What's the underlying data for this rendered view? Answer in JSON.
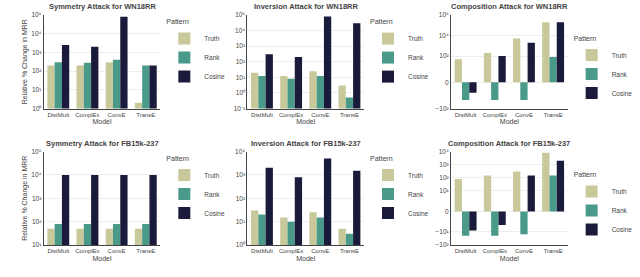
{
  "chart_data": [
    {
      "type": "bar",
      "title": "Symmetry Attack for WN18RR",
      "xlabel": "Model",
      "ylabel": "Relative % Change in MRR",
      "categories": [
        "DistMult",
        "ComplEx",
        "ConvE",
        "TransE"
      ],
      "series": [
        {
          "name": "Truth",
          "color": "#c8c89a",
          "values": [
            200,
            200,
            300,
            2
          ]
        },
        {
          "name": "Rank",
          "color": "#4a9a8a",
          "values": [
            300,
            280,
            400,
            200
          ]
        },
        {
          "name": "Cosine",
          "color": "#1a1a3a",
          "values": [
            2500,
            2000,
            80000,
            200
          ]
        }
      ],
      "ylim": [
        1,
        100000
      ],
      "yticks": [
        {
          "value": 1,
          "label": "10⁰"
        },
        {
          "value": 10,
          "label": "10¹"
        },
        {
          "value": 100,
          "label": "10²"
        },
        {
          "value": 1000,
          "label": "10³"
        },
        {
          "value": 10000,
          "label": "10⁴"
        },
        {
          "value": 100000,
          "label": "10⁵"
        }
      ],
      "log": "y",
      "grid": true,
      "legend": "upper right",
      "legend_title": "Pattern"
    },
    {
      "type": "bar",
      "title": "Inversion Attack for WN18RR",
      "xlabel": "Model",
      "categories": [
        "DistMult",
        "ComplEx",
        "ConvE",
        "TransE"
      ],
      "series": [
        {
          "name": "Truth",
          "color": "#c8c89a",
          "values": [
            20,
            12,
            25,
            3
          ]
        },
        {
          "name": "Rank",
          "color": "#4a9a8a",
          "values": [
            12,
            8,
            12,
            0.5
          ]
        },
        {
          "name": "Cosine",
          "color": "#1a1a3a",
          "values": [
            300,
            200,
            80000,
            30000
          ]
        }
      ],
      "ylim": [
        0.1,
        100000
      ],
      "yticks": [
        {
          "value": 0.1,
          "label": "10⁻¹"
        },
        {
          "value": 1,
          "label": "10⁰"
        },
        {
          "value": 10,
          "label": "10¹"
        },
        {
          "value": 100,
          "label": "10²"
        },
        {
          "value": 1000,
          "label": "10³"
        },
        {
          "value": 10000,
          "label": "10⁴"
        },
        {
          "value": 100000,
          "label": "10⁵"
        }
      ],
      "log": "y",
      "grid": true,
      "legend": "upper right",
      "legend_title": "Pattern"
    },
    {
      "type": "bar",
      "title": "Composition Attack for WN18RR",
      "xlabel": "Model",
      "categories": [
        "DistMult",
        "ComplEx",
        "ConvE",
        "TransE"
      ],
      "series": [
        {
          "name": "Truth",
          "color": "#c8c89a",
          "values": [
            50,
            200,
            5000,
            200000
          ]
        },
        {
          "name": "Rank",
          "color": "#4a9a8a",
          "values": [
            -15,
            -15,
            -15,
            80
          ]
        },
        {
          "name": "Cosine",
          "color": "#1a1a3a",
          "values": [
            -3,
            100,
            2000,
            200000
          ]
        }
      ],
      "ylim": [
        -100,
        1000000
      ],
      "yticks": [
        {
          "value": -100,
          "label": "−10²"
        },
        0,
        {
          "value": 100,
          "label": "10²"
        },
        {
          "value": 10000,
          "label": "10⁴"
        },
        {
          "value": 1000000,
          "label": "10⁶"
        }
      ],
      "log": "y",
      "grid": true,
      "legend": "lower right",
      "legend_title": "Pattern"
    },
    {
      "type": "bar",
      "title": "Symmetry Attack for FB15k-237",
      "xlabel": "Model",
      "ylabel": "Relative % Change in MRR",
      "categories": [
        "DistMult",
        "ComplEx",
        "ConvE",
        "TransE"
      ],
      "series": [
        {
          "name": "Truth",
          "color": "#c8c89a",
          "values": [
            50,
            50,
            50,
            50
          ]
        },
        {
          "name": "Rank",
          "color": "#4a9a8a",
          "values": [
            80,
            80,
            80,
            80
          ]
        },
        {
          "name": "Cosine",
          "color": "#1a1a3a",
          "values": [
            10000,
            10000,
            10000,
            10000
          ]
        }
      ],
      "ylim": [
        10,
        100000
      ],
      "yticks": [
        {
          "value": 10,
          "label": "10¹"
        },
        {
          "value": 100,
          "label": "10²"
        },
        {
          "value": 1000,
          "label": "10³"
        },
        {
          "value": 10000,
          "label": "10⁴"
        },
        {
          "value": 100000,
          "label": "10⁵"
        }
      ],
      "log": "y",
      "grid": true,
      "legend": "upper right",
      "legend_title": "Pattern"
    },
    {
      "type": "bar",
      "title": "Inversion Attack for FB15k-237",
      "xlabel": "Model",
      "categories": [
        "DistMult",
        "ComplEx",
        "ConvE",
        "TransE"
      ],
      "series": [
        {
          "name": "Truth",
          "color": "#c8c89a",
          "values": [
            30,
            15,
            25,
            5
          ]
        },
        {
          "name": "Rank",
          "color": "#4a9a8a",
          "values": [
            20,
            10,
            15,
            3
          ]
        },
        {
          "name": "Cosine",
          "color": "#1a1a3a",
          "values": [
            2000,
            800,
            5000,
            1500
          ]
        }
      ],
      "ylim": [
        1,
        10000
      ],
      "yticks": [
        {
          "value": 1,
          "label": "10⁰"
        },
        {
          "value": 10,
          "label": "10¹"
        },
        {
          "value": 100,
          "label": "10²"
        },
        {
          "value": 1000,
          "label": "10³"
        },
        {
          "value": 10000,
          "label": "10⁴"
        }
      ],
      "log": "y",
      "grid": true,
      "legend": "upper right",
      "legend_title": "Pattern"
    },
    {
      "type": "bar",
      "title": "Composition Attack for FB15k-237",
      "xlabel": "Model",
      "categories": [
        "DistMult",
        "ComplEx",
        "ConvE",
        "TransE"
      ],
      "series": [
        {
          "name": "Truth",
          "color": "#c8c89a",
          "values": [
            80,
            150,
            300,
            8000
          ]
        },
        {
          "name": "Rank",
          "color": "#4a9a8a",
          "values": [
            -20,
            -20,
            -15,
            150
          ]
        },
        {
          "name": "Cosine",
          "color": "#1a1a3a",
          "values": [
            -8,
            -3,
            150,
            2000
          ]
        }
      ],
      "ylim": [
        -100,
        10000
      ],
      "yticks": [
        {
          "value": -100,
          "label": "−10²"
        },
        {
          "value": -10,
          "label": "−10¹"
        },
        0,
        {
          "value": 10,
          "label": "10¹"
        },
        {
          "value": 100,
          "label": "10²"
        },
        {
          "value": 1000,
          "label": "10³"
        },
        {
          "value": 10000,
          "label": "10⁴"
        }
      ],
      "log": "y",
      "grid": true,
      "legend": "lower right",
      "legend_title": "Pattern"
    }
  ]
}
